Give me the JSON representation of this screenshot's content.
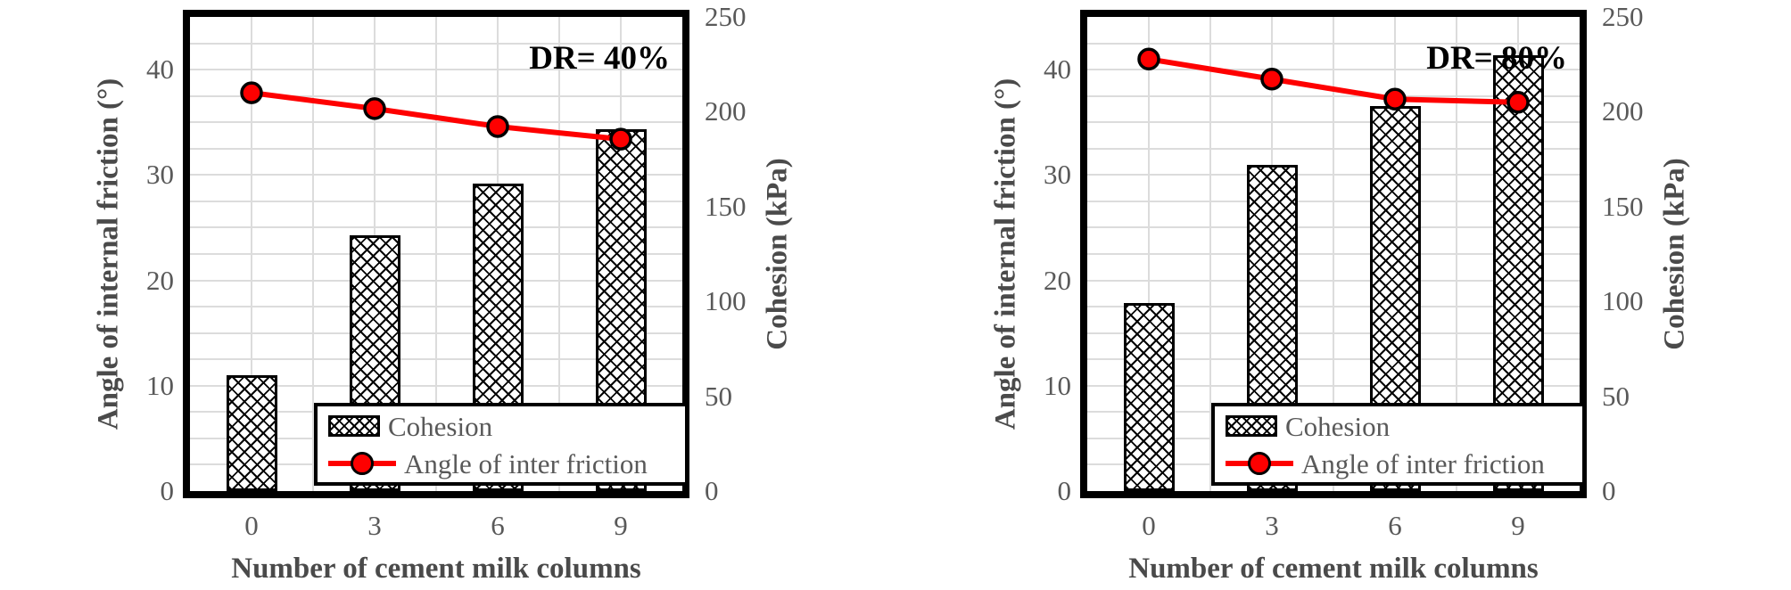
{
  "colors": {
    "series_line": "#fe0000",
    "marker_fill": "#fe0000",
    "marker_stroke": "#000000",
    "grid": "#dcdcdc",
    "tick_text": "#595959",
    "axis_title_text": "#4a4a4a",
    "chart_title_text": "#000000",
    "plot_border": "#000000",
    "bar_fill": "#ffffff",
    "bar_hatch": "#000000",
    "background": "#ffffff"
  },
  "chart_data": [
    {
      "type": "bar+line",
      "title": "DR= 40%",
      "categories": [
        "0",
        "3",
        "6",
        "9"
      ],
      "series": [
        {
          "name": "Cohesion",
          "type": "bar",
          "axis": "right",
          "values": [
            61,
            135,
            162,
            191
          ]
        },
        {
          "name": "Angle of inter friction",
          "type": "line",
          "axis": "left",
          "values": [
            37.8,
            36.3,
            34.6,
            33.4
          ]
        }
      ],
      "xlabel": "Number of cement milk columns",
      "ylabel_left": "Angle of internal friction (°)",
      "ylabel_right": "Cohesion (kPa)",
      "ylim_left": [
        0,
        45
      ],
      "ylim_right": [
        0,
        250
      ],
      "yticks_left": [
        0,
        10,
        20,
        30,
        40
      ],
      "yticks_right": [
        0,
        50,
        100,
        150,
        200,
        250
      ],
      "y_minor_step_left": 2.5,
      "grid": true,
      "legend": {
        "position": "bottom-right-inside",
        "items": [
          "Cohesion",
          "Angle of inter friction"
        ]
      }
    },
    {
      "type": "bar+line",
      "title": "DR= 80%",
      "categories": [
        "0",
        "3",
        "6",
        "9"
      ],
      "series": [
        {
          "name": "Cohesion",
          "type": "bar",
          "axis": "right",
          "values": [
            99,
            172,
            203,
            230
          ]
        },
        {
          "name": "Angle of inter friction",
          "type": "line",
          "axis": "left",
          "values": [
            41.0,
            39.1,
            37.2,
            36.9
          ]
        }
      ],
      "xlabel": "Number of cement milk columns",
      "ylabel_left": "Angle of internal friction (°)",
      "ylabel_right": "Cohesion (kPa)",
      "ylim_left": [
        0,
        45
      ],
      "ylim_right": [
        0,
        250
      ],
      "yticks_left": [
        0,
        10,
        20,
        30,
        40
      ],
      "yticks_right": [
        0,
        50,
        100,
        150,
        200,
        250
      ],
      "y_minor_step_left": 2.5,
      "grid": true,
      "legend": {
        "position": "bottom-right-inside",
        "items": [
          "Cohesion",
          "Angle of inter friction"
        ]
      }
    }
  ]
}
